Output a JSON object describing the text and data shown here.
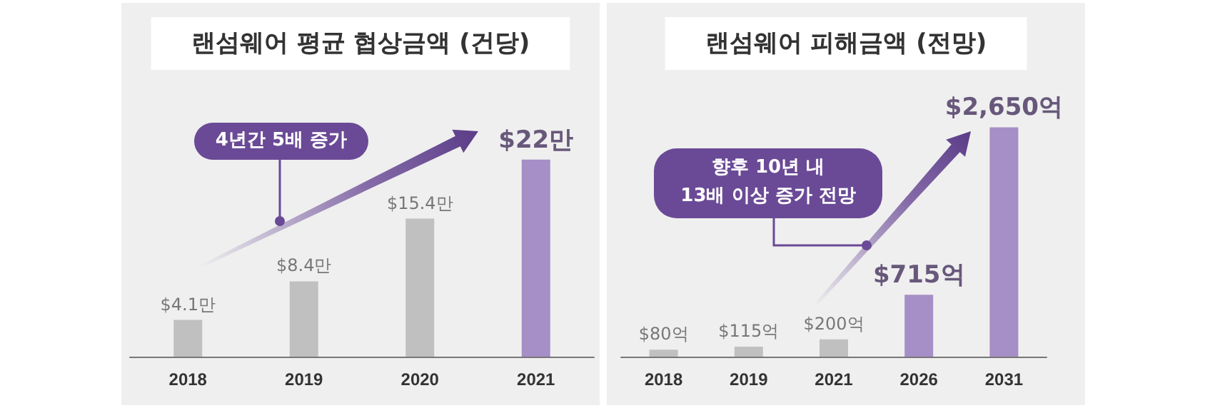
{
  "chart_data": [
    {
      "type": "bar",
      "title": "랜섬웨어 평균 협상금액 (건당)",
      "categories": [
        "2018",
        "2019",
        "2020",
        "2021"
      ],
      "values": [
        4.1,
        8.4,
        15.4,
        22
      ],
      "colors": [
        "#c0c0c0",
        "#c0c0c0",
        "#c0c0c0",
        "#a68ec6"
      ],
      "value_labels": [
        "$4.1만",
        "$8.4만",
        "$15.4만",
        "$22만"
      ],
      "annotations": [
        "4년간 5배 증가"
      ],
      "tick_labels": "x"
    },
    {
      "type": "bar",
      "title": "랜섬웨어 피해금액 (전망)",
      "categories": [
        "2018",
        "2019",
        "2021",
        "2026",
        "2031"
      ],
      "values": [
        80,
        115,
        200,
        715,
        2650
      ],
      "colors": [
        "#c0c0c0",
        "#c0c0c0",
        "#c0c0c0",
        "#a68ec6",
        "#a68ec6"
      ],
      "value_labels": [
        "$80억",
        "$115억",
        "$200억",
        "$715억",
        "$2,650억"
      ],
      "annotations": [
        "향후 10년 내\n13배 이상 증가 전망"
      ],
      "tick_labels": "x"
    }
  ]
}
